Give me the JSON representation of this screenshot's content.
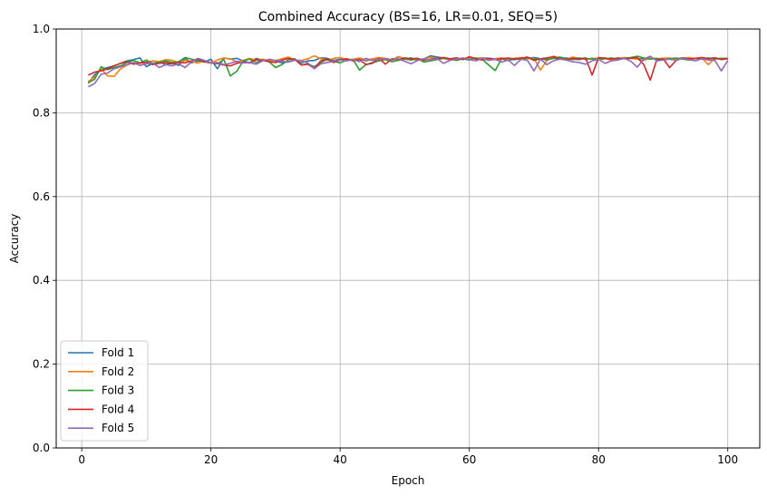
{
  "chart_data": {
    "type": "line",
    "title": "Combined Accuracy (BS=16, LR=0.01, SEQ=5)",
    "xlabel": "Epoch",
    "ylabel": "Accuracy",
    "xlim": [
      -3.95,
      104.95
    ],
    "ylim": [
      0.0,
      1.0
    ],
    "xticks": [
      0,
      20,
      40,
      60,
      80,
      100
    ],
    "yticks": [
      0.0,
      0.2,
      0.4,
      0.6,
      0.8,
      1.0
    ],
    "xtick_labels": [
      "0",
      "20",
      "40",
      "60",
      "80",
      "100"
    ],
    "ytick_labels": [
      "0.0",
      "0.2",
      "0.4",
      "0.6",
      "0.8",
      "1.0"
    ],
    "grid": true,
    "legend_position": "bottom-left",
    "series": [
      {
        "name": "Fold 1",
        "color": "#1f77b4",
        "values": [
          0.87,
          0.891,
          0.903,
          0.908,
          0.912,
          0.918,
          0.924,
          0.927,
          0.931,
          0.91,
          0.918,
          0.922,
          0.915,
          0.919,
          0.913,
          0.93,
          0.919,
          0.924,
          0.921,
          0.928,
          0.905,
          0.931,
          0.928,
          0.93,
          0.924,
          0.919,
          0.93,
          0.925,
          0.926,
          0.924,
          0.919,
          0.922,
          0.926,
          0.919,
          0.924,
          0.925,
          0.931,
          0.93,
          0.925,
          0.928,
          0.927,
          0.925,
          0.929,
          0.924,
          0.928,
          0.931,
          0.929,
          0.926,
          0.934,
          0.929,
          0.931,
          0.926,
          0.929,
          0.936,
          0.933,
          0.931,
          0.927,
          0.928,
          0.929,
          0.931,
          0.928,
          0.931,
          0.93,
          0.929,
          0.931,
          0.926,
          0.927,
          0.929,
          0.93,
          0.932,
          0.929,
          0.928,
          0.93,
          0.929,
          0.931,
          0.928,
          0.927,
          0.93,
          0.928,
          0.929,
          0.931,
          0.927,
          0.929,
          0.931,
          0.93,
          0.928,
          0.93,
          0.931,
          0.927,
          0.93,
          0.928,
          0.929,
          0.931,
          0.93,
          0.929,
          0.928,
          0.93,
          0.931,
          0.929,
          0.93
        ]
      },
      {
        "name": "Fold 2",
        "color": "#ff7f0e",
        "values": [
          0.875,
          0.885,
          0.905,
          0.888,
          0.887,
          0.905,
          0.914,
          0.92,
          0.918,
          0.921,
          0.924,
          0.922,
          0.927,
          0.925,
          0.92,
          0.925,
          0.922,
          0.919,
          0.924,
          0.92,
          0.926,
          0.931,
          0.929,
          0.921,
          0.925,
          0.93,
          0.926,
          0.928,
          0.924,
          0.925,
          0.929,
          0.933,
          0.926,
          0.925,
          0.929,
          0.936,
          0.929,
          0.925,
          0.93,
          0.932,
          0.927,
          0.928,
          0.931,
          0.926,
          0.929,
          0.932,
          0.93,
          0.927,
          0.933,
          0.93,
          0.929,
          0.925,
          0.928,
          0.933,
          0.929,
          0.93,
          0.926,
          0.931,
          0.929,
          0.932,
          0.93,
          0.931,
          0.927,
          0.929,
          0.931,
          0.928,
          0.93,
          0.932,
          0.929,
          0.93,
          0.902,
          0.925,
          0.935,
          0.931,
          0.928,
          0.933,
          0.93,
          0.927,
          0.929,
          0.931,
          0.93,
          0.925,
          0.929,
          0.932,
          0.93,
          0.928,
          0.925,
          0.931,
          0.929,
          0.93,
          0.931,
          0.928,
          0.93,
          0.932,
          0.929,
          0.93,
          0.915,
          0.931,
          0.929,
          0.93
        ]
      },
      {
        "name": "Fold 3",
        "color": "#2ca02c",
        "values": [
          0.872,
          0.88,
          0.91,
          0.903,
          0.908,
          0.912,
          0.92,
          0.925,
          0.919,
          0.926,
          0.918,
          0.921,
          0.924,
          0.92,
          0.922,
          0.932,
          0.928,
          0.925,
          0.922,
          0.919,
          0.917,
          0.927,
          0.888,
          0.899,
          0.924,
          0.928,
          0.92,
          0.926,
          0.922,
          0.908,
          0.915,
          0.927,
          0.929,
          0.914,
          0.917,
          0.91,
          0.92,
          0.928,
          0.923,
          0.919,
          0.926,
          0.927,
          0.902,
          0.915,
          0.92,
          0.924,
          0.927,
          0.922,
          0.925,
          0.928,
          0.926,
          0.929,
          0.921,
          0.924,
          0.927,
          0.93,
          0.928,
          0.925,
          0.929,
          0.926,
          0.931,
          0.928,
          0.914,
          0.901,
          0.929,
          0.925,
          0.93,
          0.927,
          0.931,
          0.928,
          0.929,
          0.926,
          0.93,
          0.933,
          0.929,
          0.927,
          0.931,
          0.928,
          0.93,
          0.927,
          0.929,
          0.931,
          0.928,
          0.93,
          0.932,
          0.935,
          0.931,
          0.928,
          0.93,
          0.927,
          0.929,
          0.931,
          0.928,
          0.926,
          0.93,
          0.929,
          0.931,
          0.928,
          0.93,
          0.929
        ]
      },
      {
        "name": "Fold 4",
        "color": "#d62728",
        "values": [
          0.89,
          0.897,
          0.9,
          0.905,
          0.912,
          0.918,
          0.922,
          0.916,
          0.919,
          0.921,
          0.915,
          0.918,
          0.92,
          0.917,
          0.921,
          0.919,
          0.924,
          0.928,
          0.922,
          0.919,
          0.918,
          0.914,
          0.912,
          0.918,
          0.921,
          0.919,
          0.927,
          0.925,
          0.922,
          0.92,
          0.926,
          0.93,
          0.927,
          0.914,
          0.916,
          0.906,
          0.924,
          0.928,
          0.92,
          0.926,
          0.929,
          0.924,
          0.927,
          0.915,
          0.918,
          0.93,
          0.916,
          0.929,
          0.927,
          0.931,
          0.929,
          0.93,
          0.925,
          0.928,
          0.93,
          0.932,
          0.929,
          0.931,
          0.927,
          0.934,
          0.929,
          0.926,
          0.93,
          0.927,
          0.929,
          0.931,
          0.928,
          0.93,
          0.933,
          0.925,
          0.929,
          0.931,
          0.934,
          0.929,
          0.927,
          0.93,
          0.929,
          0.931,
          0.89,
          0.932,
          0.93,
          0.928,
          0.931,
          0.929,
          0.93,
          0.932,
          0.915,
          0.878,
          0.926,
          0.929,
          0.908,
          0.925,
          0.931,
          0.929,
          0.93,
          0.932,
          0.929,
          0.931,
          0.927,
          0.929
        ]
      },
      {
        "name": "Fold 5",
        "color": "#9467bd",
        "values": [
          0.862,
          0.87,
          0.892,
          0.895,
          0.905,
          0.91,
          0.915,
          0.92,
          0.913,
          0.917,
          0.919,
          0.908,
          0.915,
          0.912,
          0.917,
          0.908,
          0.922,
          0.93,
          0.925,
          0.919,
          0.92,
          0.915,
          0.918,
          0.923,
          0.919,
          0.92,
          0.916,
          0.924,
          0.928,
          0.925,
          0.923,
          0.921,
          0.926,
          0.924,
          0.919,
          0.905,
          0.917,
          0.92,
          0.923,
          0.926,
          0.924,
          0.927,
          0.922,
          0.93,
          0.925,
          0.927,
          0.929,
          0.926,
          0.929,
          0.923,
          0.917,
          0.925,
          0.928,
          0.926,
          0.93,
          0.918,
          0.925,
          0.928,
          0.931,
          0.927,
          0.924,
          0.93,
          0.925,
          0.928,
          0.921,
          0.926,
          0.913,
          0.928,
          0.925,
          0.9,
          0.928,
          0.915,
          0.924,
          0.928,
          0.926,
          0.922,
          0.92,
          0.916,
          0.924,
          0.928,
          0.918,
          0.924,
          0.926,
          0.93,
          0.923,
          0.909,
          0.928,
          0.935,
          0.924,
          0.926,
          0.928,
          0.925,
          0.93,
          0.927,
          0.924,
          0.929,
          0.926,
          0.925,
          0.9,
          0.925
        ]
      }
    ]
  }
}
